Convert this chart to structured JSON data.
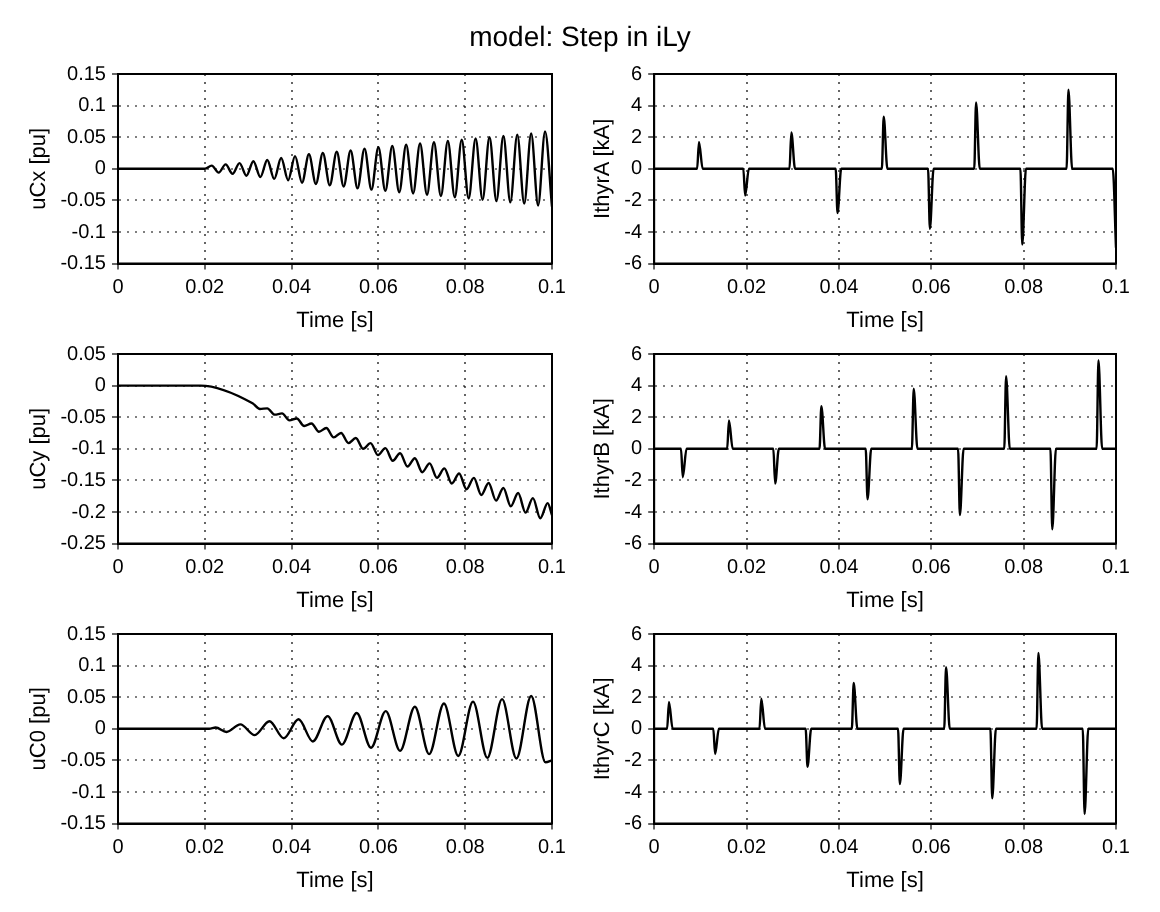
{
  "chart_data": [
    {
      "type": "line",
      "title": "model: Step in iLy",
      "xlabel": "Time [s]",
      "ylabel": "uCx [pu]",
      "color": "#000000",
      "grid": true,
      "legend": false,
      "marker": "none",
      "line_style": "solid",
      "xlim": [
        0,
        0.1
      ],
      "xticks": [
        0,
        0.02,
        0.04,
        0.06,
        0.08,
        0.1
      ],
      "ylim": [
        -0.15,
        0.15
      ],
      "yticks": [
        -0.15,
        -0.1,
        -0.05,
        0,
        0.05,
        0.1,
        0.15
      ],
      "x": [
        0,
        0.02,
        0.0216,
        0.0232,
        0.0248,
        0.0264,
        0.028,
        0.0296,
        0.0312,
        0.0328,
        0.0344,
        0.036,
        0.0376,
        0.0392,
        0.0408,
        0.0424,
        0.044,
        0.0456,
        0.0472,
        0.0488,
        0.0504,
        0.052,
        0.0536,
        0.0552,
        0.0568,
        0.0584,
        0.06,
        0.0616,
        0.0632,
        0.0648,
        0.0664,
        0.068,
        0.0696,
        0.0712,
        0.0728,
        0.0744,
        0.076,
        0.0776,
        0.0792,
        0.0808,
        0.0824,
        0.084,
        0.0856,
        0.0872,
        0.0888,
        0.0904,
        0.092,
        0.0936,
        0.0952,
        0.0968,
        0.0984,
        0.1
      ],
      "values": [
        0,
        0,
        0.005,
        -0.006,
        0.007,
        -0.008,
        0.009,
        -0.011,
        0.012,
        -0.013,
        0.014,
        -0.016,
        0.017,
        -0.018,
        0.02,
        -0.022,
        0.023,
        -0.024,
        0.025,
        -0.026,
        0.027,
        -0.028,
        0.029,
        -0.031,
        0.032,
        -0.033,
        0.034,
        -0.035,
        0.036,
        -0.037,
        0.038,
        -0.039,
        0.04,
        -0.041,
        0.042,
        -0.043,
        0.044,
        -0.045,
        0.046,
        -0.047,
        0.048,
        -0.049,
        0.05,
        -0.051,
        0.052,
        -0.053,
        0.054,
        -0.055,
        0.056,
        -0.058,
        0.059,
        -0.06
      ]
    },
    {
      "type": "line",
      "xlabel": "Time [s]",
      "ylabel": "IthyrA [kA]",
      "color": "#000000",
      "grid": true,
      "legend": false,
      "marker": "none",
      "line_style": "solid",
      "xlim": [
        0,
        0.1
      ],
      "xticks": [
        0,
        0.02,
        0.04,
        0.06,
        0.08,
        0.1
      ],
      "ylim": [
        -6,
        6
      ],
      "yticks": [
        -6,
        -4,
        -2,
        0,
        2,
        4,
        6
      ],
      "x": [
        0,
        0.0093,
        0.0097,
        0.0105,
        0.0193,
        0.0197,
        0.0205,
        0.0293,
        0.0297,
        0.0305,
        0.0393,
        0.0397,
        0.0405,
        0.0493,
        0.0497,
        0.0505,
        0.0593,
        0.0597,
        0.0605,
        0.0693,
        0.0697,
        0.0705,
        0.0793,
        0.0797,
        0.0805,
        0.0893,
        0.0897,
        0.0905,
        0.0993,
        0.1
      ],
      "values": [
        0,
        0,
        1.7,
        0,
        0,
        -1.7,
        0,
        0,
        2.3,
        0,
        0,
        -2.8,
        0,
        0,
        3.3,
        0,
        0,
        -3.8,
        0,
        0,
        4.2,
        0,
        0,
        -4.8,
        0,
        0,
        5,
        0,
        0,
        -5
      ]
    },
    {
      "type": "line",
      "xlabel": "Time [s]",
      "ylabel": "uCy [pu]",
      "color": "#000000",
      "grid": true,
      "legend": false,
      "marker": "none",
      "line_style": "solid",
      "xlim": [
        0,
        0.1
      ],
      "xticks": [
        0,
        0.02,
        0.04,
        0.06,
        0.08,
        0.1
      ],
      "ylim": [
        -0.25,
        0.05
      ],
      "yticks": [
        -0.25,
        -0.2,
        -0.15,
        -0.1,
        -0.05,
        0,
        0.05
      ],
      "x": [
        0,
        0.019,
        0.031,
        0.0327,
        0.0344,
        0.0361,
        0.0378,
        0.0395,
        0.0412,
        0.0429,
        0.0446,
        0.0463,
        0.048,
        0.0497,
        0.0514,
        0.0531,
        0.0548,
        0.0565,
        0.0582,
        0.0599,
        0.0616,
        0.0633,
        0.065,
        0.0667,
        0.0684,
        0.0701,
        0.0718,
        0.0735,
        0.0752,
        0.0769,
        0.0786,
        0.0803,
        0.082,
        0.0837,
        0.0854,
        0.0871,
        0.0888,
        0.0905,
        0.0922,
        0.0939,
        0.0956,
        0.0973,
        0.099,
        0.1
      ],
      "values": [
        0,
        0,
        -0.028,
        -0.037,
        -0.036,
        -0.046,
        -0.044,
        -0.055,
        -0.052,
        -0.064,
        -0.06,
        -0.073,
        -0.067,
        -0.082,
        -0.075,
        -0.091,
        -0.083,
        -0.1,
        -0.091,
        -0.11,
        -0.099,
        -0.119,
        -0.107,
        -0.128,
        -0.115,
        -0.137,
        -0.123,
        -0.146,
        -0.131,
        -0.155,
        -0.139,
        -0.164,
        -0.146,
        -0.173,
        -0.154,
        -0.182,
        -0.162,
        -0.191,
        -0.17,
        -0.201,
        -0.178,
        -0.21,
        -0.186,
        -0.205
      ]
    },
    {
      "type": "line",
      "xlabel": "Time [s]",
      "ylabel": "IthyrB [kA]",
      "color": "#000000",
      "grid": true,
      "legend": false,
      "marker": "none",
      "line_style": "solid",
      "xlim": [
        0,
        0.1
      ],
      "xticks": [
        0,
        0.02,
        0.04,
        0.06,
        0.08,
        0.1
      ],
      "ylim": [
        -6,
        6
      ],
      "yticks": [
        -6,
        -4,
        -2,
        0,
        2,
        4,
        6
      ],
      "x": [
        0,
        0.0058,
        0.0062,
        0.007,
        0.0158,
        0.0162,
        0.017,
        0.0258,
        0.0262,
        0.027,
        0.0358,
        0.0362,
        0.037,
        0.0458,
        0.0462,
        0.047,
        0.0558,
        0.0562,
        0.057,
        0.0658,
        0.0662,
        0.067,
        0.0758,
        0.0762,
        0.077,
        0.0858,
        0.0862,
        0.087,
        0.0958,
        0.0962,
        0.097,
        0.1
      ],
      "values": [
        0,
        0,
        -1.8,
        0,
        0,
        1.8,
        0,
        0,
        -2.2,
        0,
        0,
        2.7,
        0,
        0,
        -3.2,
        0,
        0,
        3.8,
        0,
        0,
        -4.2,
        0,
        0,
        4.6,
        0,
        0,
        -5.1,
        0,
        0,
        5.6,
        0,
        0
      ]
    },
    {
      "type": "line",
      "xlabel": "Time [s]",
      "ylabel": "uC0 [pu]",
      "color": "#000000",
      "grid": true,
      "legend": false,
      "marker": "none",
      "line_style": "solid",
      "xlim": [
        0,
        0.1
      ],
      "xticks": [
        0,
        0.02,
        0.04,
        0.06,
        0.08,
        0.1
      ],
      "ylim": [
        -0.15,
        0.15
      ],
      "yticks": [
        -0.15,
        -0.1,
        -0.05,
        0,
        0.05,
        0.1,
        0.15
      ],
      "x": [
        0,
        0.021,
        0.0225,
        0.025,
        0.0282,
        0.0315,
        0.0349,
        0.0382,
        0.0416,
        0.0449,
        0.0483,
        0.0516,
        0.055,
        0.0583,
        0.0617,
        0.065,
        0.0684,
        0.0717,
        0.0751,
        0.0784,
        0.0818,
        0.0851,
        0.0885,
        0.0918,
        0.0952,
        0.0985,
        0.1
      ],
      "values": [
        0,
        0,
        0.002,
        -0.005,
        0.007,
        -0.01,
        0.012,
        -0.015,
        0.015,
        -0.02,
        0.02,
        -0.025,
        0.025,
        -0.03,
        0.028,
        -0.035,
        0.035,
        -0.04,
        0.04,
        -0.043,
        0.043,
        -0.046,
        0.047,
        -0.047,
        0.052,
        -0.053,
        -0.05
      ]
    },
    {
      "type": "line",
      "xlabel": "Time [s]",
      "ylabel": "IthyrC [kA]",
      "color": "#000000",
      "grid": true,
      "legend": false,
      "marker": "none",
      "line_style": "solid",
      "xlim": [
        0,
        0.1
      ],
      "xticks": [
        0,
        0.02,
        0.04,
        0.06,
        0.08,
        0.1
      ],
      "ylim": [
        -6,
        6
      ],
      "yticks": [
        -6,
        -4,
        -2,
        0,
        2,
        4,
        6
      ],
      "x": [
        0,
        0.0028,
        0.0032,
        0.004,
        0.0128,
        0.0132,
        0.014,
        0.0228,
        0.0232,
        0.024,
        0.0328,
        0.0332,
        0.034,
        0.0428,
        0.0432,
        0.044,
        0.0528,
        0.0532,
        0.054,
        0.0628,
        0.0632,
        0.064,
        0.0728,
        0.0732,
        0.074,
        0.0828,
        0.0832,
        0.084,
        0.0928,
        0.0932,
        0.094,
        0.1
      ],
      "values": [
        0,
        0,
        1.7,
        0,
        0,
        -1.6,
        0,
        0,
        1.9,
        0,
        0,
        -2.4,
        0,
        0,
        2.9,
        0,
        0,
        -3.5,
        0,
        0,
        3.9,
        0,
        0,
        -4.4,
        0,
        0,
        4.8,
        0,
        0,
        -5.4,
        0,
        0
      ]
    }
  ]
}
